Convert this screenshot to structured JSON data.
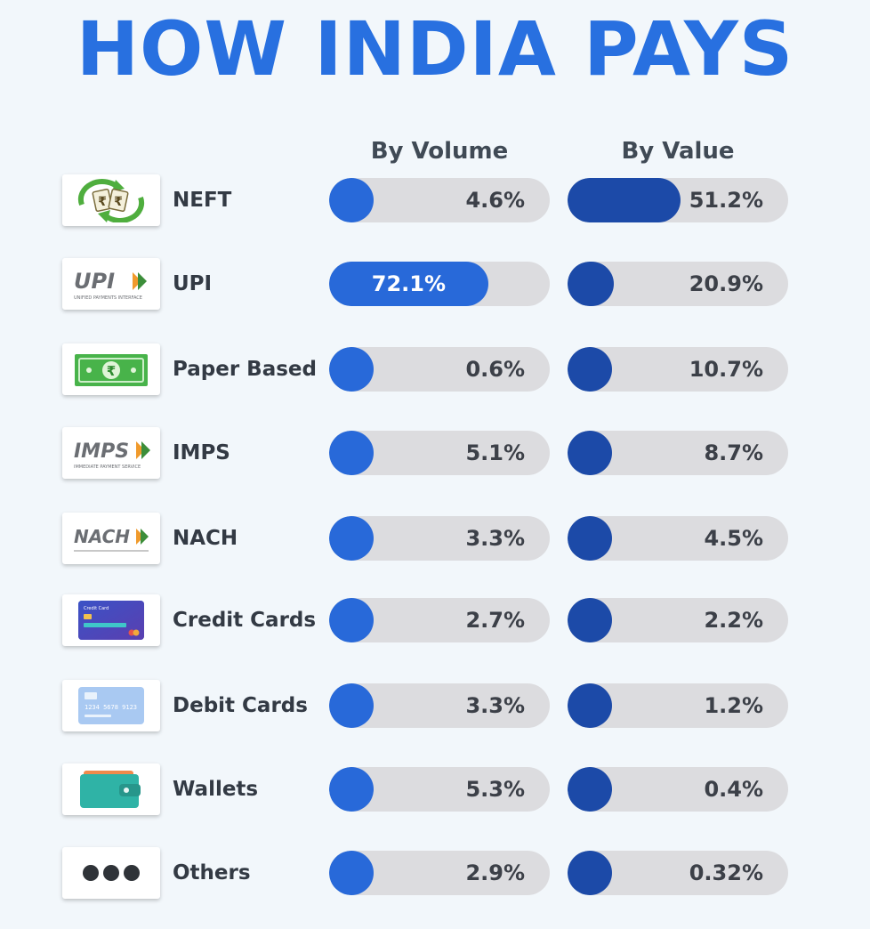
{
  "title": "HOW INDIA PAYS",
  "colors": {
    "title": "#2870e0",
    "volume_fill": "#2869d9",
    "value_fill": "#1c4aa8",
    "track": "#dcdcdf"
  },
  "chart_data": {
    "type": "bar",
    "title": "HOW INDIA PAYS",
    "categories": [
      "NEFT",
      "UPI",
      "Paper Based",
      "IMPS",
      "NACH",
      "Credit Cards",
      "Debit Cards",
      "Wallets",
      "Others"
    ],
    "series": [
      {
        "name": "By Volume",
        "values": [
          4.6,
          72.1,
          0.6,
          5.1,
          3.3,
          2.7,
          3.3,
          5.3,
          2.9
        ],
        "labels": [
          "4.6%",
          "72.1%",
          "0.6%",
          "5.1%",
          "3.3%",
          "2.7%",
          "3.3%",
          "5.3%",
          "2.9%"
        ]
      },
      {
        "name": "By Value",
        "values": [
          51.2,
          20.9,
          10.7,
          8.7,
          4.5,
          2.2,
          1.2,
          0.4,
          0.32
        ],
        "labels": [
          "51.2%",
          "20.9%",
          "10.7%",
          "8.7%",
          "4.5%",
          "2.2%",
          "1.2%",
          "0.4%",
          "0.32%"
        ]
      }
    ]
  },
  "logos": {
    "upi": {
      "name": "UPI",
      "tagline": "UNIFIED PAYMENTS INTERFACE"
    },
    "imps": {
      "name": "IMPS",
      "tagline": "IMMEDIATE PAYMENT SERVICE"
    },
    "nach": {
      "name": "NACH"
    },
    "credit_card": {
      "caption": "Credit Card"
    },
    "debit_card": {
      "number": "1234 5678 9123"
    }
  },
  "icons": [
    "neft-rupee-exchange-icon",
    "upi-logo-icon",
    "banknote-icon",
    "imps-logo-icon",
    "nach-logo-icon",
    "credit-card-icon",
    "debit-card-icon",
    "wallet-icon",
    "more-dots-icon"
  ]
}
